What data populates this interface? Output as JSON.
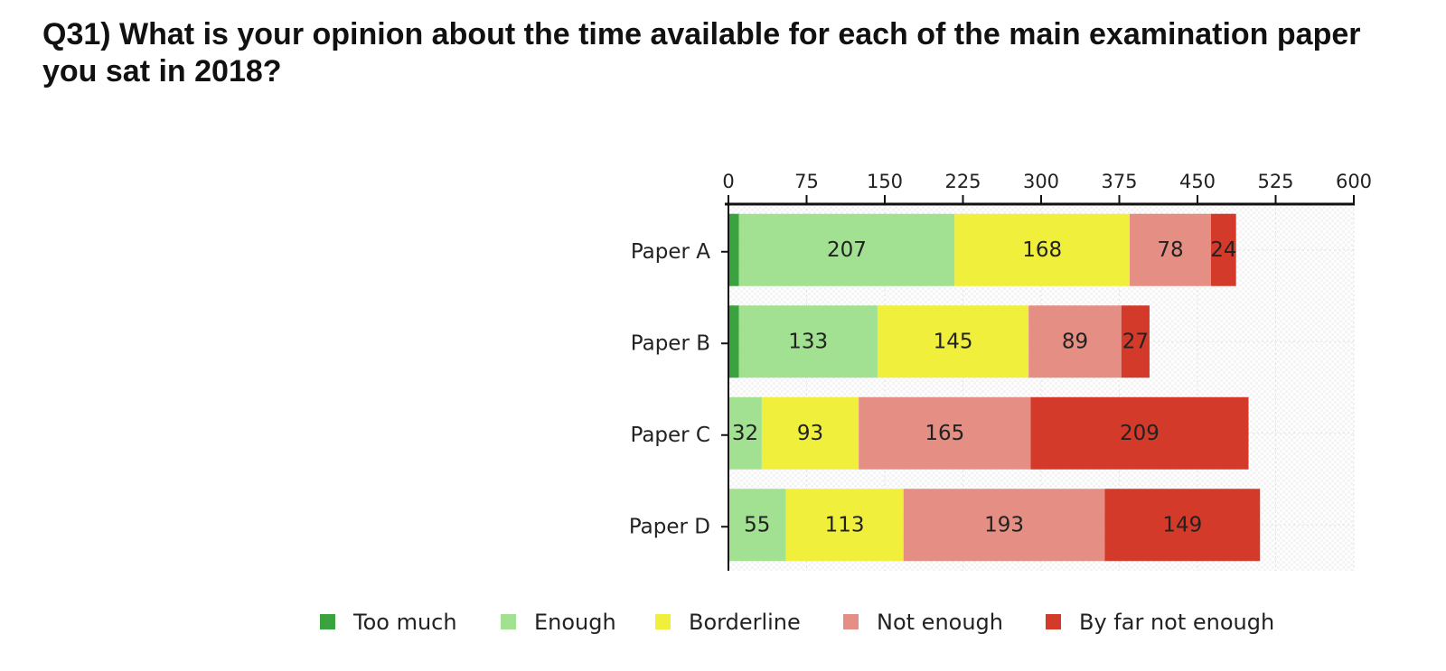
{
  "title": "Q31) What is your opinion about the time available for each of the main examination paper you sat in 2018?",
  "chart_data": {
    "type": "bar",
    "orientation": "horizontal",
    "stacked": true,
    "categories": [
      "Paper A",
      "Paper B",
      "Paper C",
      "Paper D"
    ],
    "series": [
      {
        "name": "Too much",
        "color": "#3aa33f",
        "values": [
          10,
          10,
          0,
          0
        ],
        "labels": [
          "",
          "",
          "",
          ""
        ]
      },
      {
        "name": "Enough",
        "color": "#a1e191",
        "values": [
          207,
          133,
          32,
          55
        ],
        "labels": [
          "207",
          "133",
          "32",
          "55"
        ]
      },
      {
        "name": "Borderline",
        "color": "#f0f03c",
        "values": [
          168,
          145,
          93,
          113
        ],
        "labels": [
          "168",
          "145",
          "93",
          "113"
        ]
      },
      {
        "name": "Not enough",
        "color": "#e58e84",
        "values": [
          78,
          89,
          165,
          193
        ],
        "labels": [
          "78",
          "89",
          "165",
          "193"
        ]
      },
      {
        "name": "By far not enough",
        "color": "#d43a2a",
        "values": [
          24,
          27,
          209,
          149
        ],
        "labels": [
          "24",
          "27",
          "209",
          "149"
        ]
      }
    ],
    "x_axis": {
      "position": "top",
      "min": 0,
      "max": 600,
      "ticks": [
        "0",
        "75",
        "150",
        "225",
        "300",
        "375",
        "450",
        "525",
        "600"
      ]
    },
    "grid": true,
    "legend": "bottom"
  }
}
